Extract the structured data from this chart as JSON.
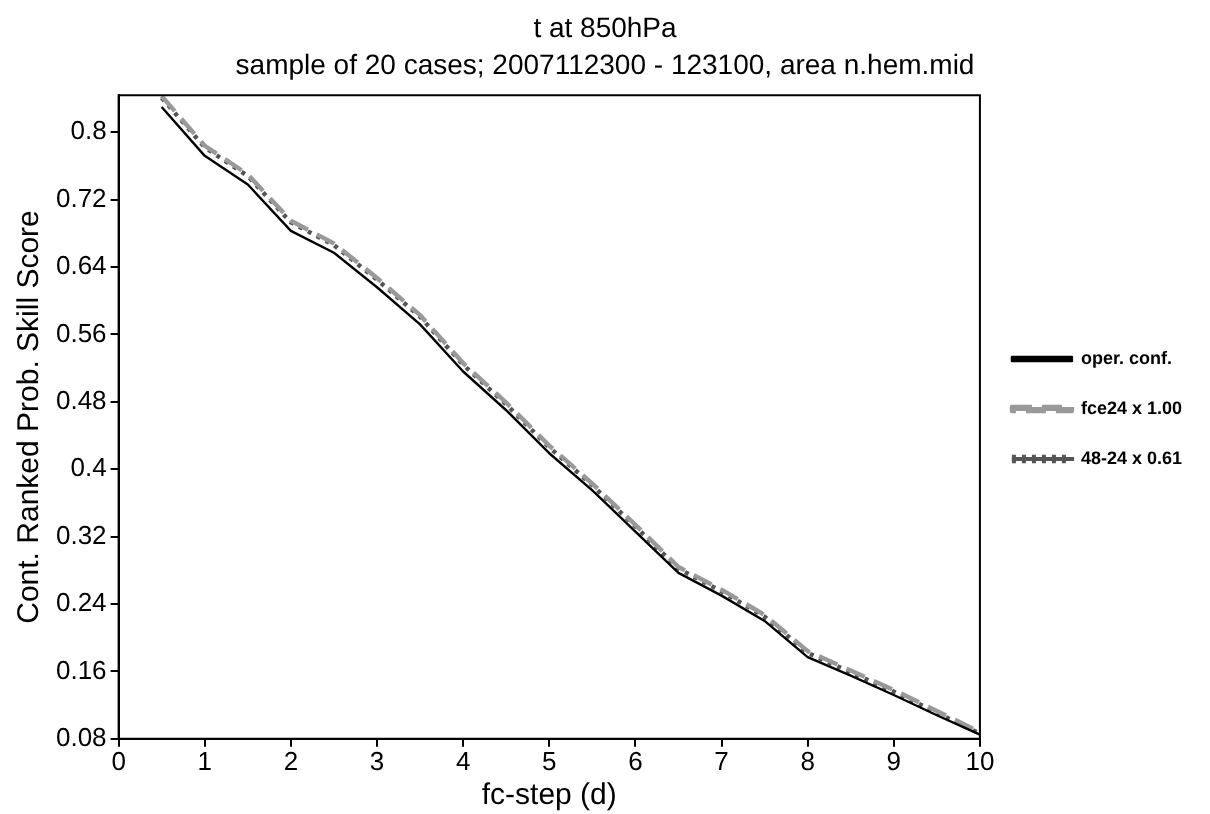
{
  "chart_data": {
    "type": "line",
    "title": "t at 850hPa",
    "subtitle": "sample of 20 cases; 2007112300 - 123100, area n.hem.mid",
    "xlabel": "fc-step (d)",
    "ylabel": "Cont. Ranked Prob. Skill Score",
    "x": [
      0.5,
      1,
      1.5,
      2,
      2.5,
      3,
      3.5,
      4,
      4.5,
      5,
      5.5,
      6,
      6.5,
      7,
      7.5,
      8,
      8.5,
      9,
      9.5,
      10
    ],
    "series": [
      {
        "name": "oper. conf.",
        "color": "#000000",
        "line_style": "solid",
        "values": [
          0.83,
          0.772,
          0.738,
          0.683,
          0.657,
          0.616,
          0.572,
          0.516,
          0.47,
          0.419,
          0.375,
          0.326,
          0.277,
          0.25,
          0.22,
          0.177,
          0.155,
          0.132,
          0.108,
          0.085
        ]
      },
      {
        "name": "fce24 x 1.00",
        "color": "#999999",
        "line_style": "dashed",
        "values": [
          0.843,
          0.784,
          0.75,
          0.695,
          0.668,
          0.627,
          0.583,
          0.526,
          0.479,
          0.428,
          0.383,
          0.334,
          0.284,
          0.257,
          0.227,
          0.184,
          0.161,
          0.138,
          0.113,
          0.088
        ]
      },
      {
        "name": "48-24 x 0.61",
        "color": "#555555",
        "line_style": "dotted",
        "values": [
          0.841,
          0.782,
          0.748,
          0.693,
          0.666,
          0.625,
          0.581,
          0.524,
          0.477,
          0.426,
          0.381,
          0.332,
          0.282,
          0.255,
          0.225,
          0.182,
          0.159,
          0.136,
          0.111,
          0.086
        ]
      }
    ],
    "xlim": [
      0,
      10
    ],
    "xticks": [
      0,
      1,
      2,
      3,
      4,
      5,
      6,
      7,
      8,
      9,
      10
    ],
    "ylim": [
      0.08,
      0.844
    ],
    "yticks": [
      0.08,
      0.16,
      0.24,
      0.32,
      0.4,
      0.48,
      0.56,
      0.64,
      0.72,
      0.8
    ],
    "grid": false,
    "legend": "right",
    "marker": "none"
  }
}
